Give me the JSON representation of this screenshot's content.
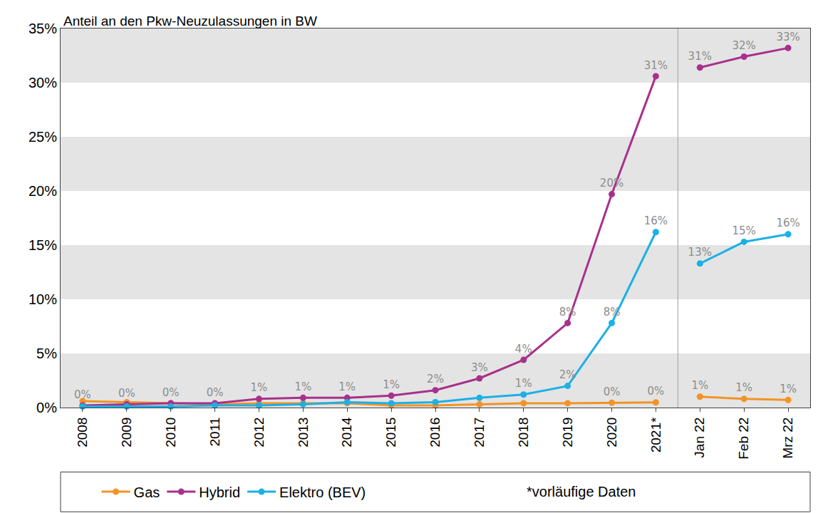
{
  "chart_data": {
    "type": "line",
    "title": "Anteil an den Pkw-Neuzulassungen in BW",
    "categories": [
      "2008",
      "2009",
      "2010",
      "2011",
      "2012",
      "2013",
      "2014",
      "2015",
      "2016",
      "2017",
      "2018",
      "2019",
      "2020",
      "2021*",
      "Jan 22",
      "Feb 22",
      "Mrz 22"
    ],
    "series": [
      {
        "name": "Gas",
        "color": "#f39325",
        "values": [
          0.6,
          0.5,
          0.4,
          0.3,
          0.4,
          0.4,
          0.4,
          0.2,
          0.2,
          0.3,
          0.4,
          0.4,
          0.45,
          0.48,
          1.0,
          0.8,
          0.7
        ],
        "value_labels": [
          null,
          null,
          null,
          null,
          null,
          null,
          null,
          null,
          null,
          null,
          null,
          null,
          "0%",
          "0%",
          "1%",
          "1%",
          "1%"
        ]
      },
      {
        "name": "Hybrid",
        "color": "#a8308c",
        "values": [
          0.2,
          0.3,
          0.4,
          0.4,
          0.8,
          0.9,
          0.9,
          1.1,
          1.6,
          2.7,
          4.4,
          7.8,
          19.7,
          30.6,
          31.4,
          32.4,
          33.2
        ],
        "value_labels": [
          "0%",
          "0%",
          "0%",
          "0%",
          "1%",
          "1%",
          "1%",
          "1%",
          "2%",
          "3%",
          "4%",
          "8%",
          "20%",
          "31%",
          "31%",
          "32%",
          "33%"
        ]
      },
      {
        "name": "Elektro (BEV)",
        "color": "#1cb0e6",
        "values": [
          0.1,
          0.1,
          0.1,
          0.2,
          0.2,
          0.3,
          0.5,
          0.4,
          0.5,
          0.9,
          1.2,
          2.0,
          7.8,
          16.2,
          13.3,
          15.3,
          16.0
        ],
        "value_labels": [
          null,
          null,
          null,
          null,
          null,
          null,
          null,
          null,
          null,
          null,
          "1%",
          "2%",
          "8%",
          "16%",
          "13%",
          "15%",
          "16%"
        ]
      }
    ],
    "ylim": [
      0,
      35
    ],
    "yticks": [
      {
        "value": 0,
        "label": "0%"
      },
      {
        "value": 5,
        "label": "5%"
      },
      {
        "value": 10,
        "label": "10%"
      },
      {
        "value": 15,
        "label": "15%"
      },
      {
        "value": 20,
        "label": "20%"
      },
      {
        "value": 25,
        "label": "25%"
      },
      {
        "value": 30,
        "label": "30%"
      },
      {
        "value": 35,
        "label": "35%"
      }
    ],
    "grid": true,
    "data_labels": true,
    "legend": "bottom",
    "marker": "circle",
    "annotations": [
      "*vorläufige Daten"
    ]
  }
}
